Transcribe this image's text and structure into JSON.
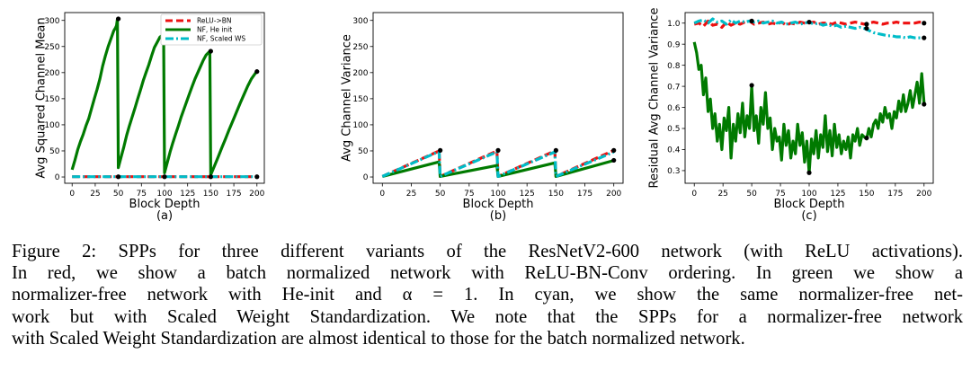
{
  "chart_data": [
    {
      "type": "line",
      "sub_label": "(a)",
      "xlabel": "Block Depth",
      "ylabel": "Avg Squared Channel Mean",
      "xlim": [
        -8,
        208
      ],
      "ylim": [
        -12,
        315
      ],
      "xticks": [
        0,
        25,
        50,
        75,
        100,
        125,
        150,
        175,
        200
      ],
      "yticks": [
        0,
        50,
        100,
        150,
        200,
        250,
        300
      ],
      "legend": {
        "position": "top-right",
        "entries": [
          {
            "name": "ReLU->BN",
            "color": "#ee1111",
            "dash": "8,4"
          },
          {
            "name": "NF, He init",
            "color": "#007a00",
            "dash": ""
          },
          {
            "name": "NF, Scaled WS",
            "color": "#00bcc8",
            "dash": "9,3,2,3"
          }
        ]
      },
      "series": [
        {
          "name": "ReLU->BN",
          "color": "#ee1111",
          "dash": "8,4",
          "x": [
            0,
            49,
            50,
            99,
            100,
            149,
            150,
            199,
            200
          ],
          "y": [
            0.5,
            0.5,
            0.5,
            0.5,
            0.5,
            0.5,
            0.5,
            0.5,
            0.5
          ]
        },
        {
          "name": "NF, He init",
          "color": "#007a00",
          "dash": "",
          "x": [
            0,
            3,
            6,
            9,
            12,
            15,
            18,
            21,
            24,
            27,
            30,
            33,
            36,
            39,
            42,
            45,
            47,
            48,
            49,
            50,
            53,
            56,
            59,
            62,
            65,
            68,
            71,
            74,
            77,
            80,
            83,
            86,
            89,
            92,
            95,
            98,
            99,
            100,
            103,
            106,
            109,
            112,
            115,
            118,
            121,
            124,
            127,
            130,
            133,
            136,
            139,
            142,
            145,
            148,
            149,
            150,
            154,
            158,
            162,
            166,
            170,
            174,
            178,
            182,
            186,
            190,
            194,
            198,
            200
          ],
          "y": [
            14,
            32,
            52,
            68,
            82,
            98,
            112,
            131,
            150,
            168,
            188,
            212,
            232,
            250,
            265,
            280,
            286,
            290,
            303,
            18,
            38,
            58,
            80,
            98,
            115,
            132,
            150,
            167,
            185,
            200,
            215,
            232,
            248,
            258,
            268,
            272,
            270,
            8,
            28,
            48,
            66,
            82,
            98,
            115,
            130,
            145,
            160,
            174,
            188,
            200,
            212,
            224,
            234,
            239,
            241,
            4,
            21,
            38,
            56,
            73,
            91,
            108,
            125,
            142,
            158,
            174,
            188,
            198,
            202
          ]
        },
        {
          "name": "NF, Scaled WS",
          "color": "#00bcc8",
          "dash": "9,3,2,3",
          "x": [
            0,
            49,
            50,
            99,
            100,
            149,
            150,
            199,
            200
          ],
          "y": [
            0.5,
            0.5,
            0.5,
            0.5,
            0.5,
            0.5,
            0.5,
            0.5,
            0.5
          ]
        }
      ],
      "markers": [
        [
          50,
          303
        ],
        [
          100,
          270
        ],
        [
          150,
          241
        ],
        [
          200,
          202
        ],
        [
          50,
          0.5
        ],
        [
          100,
          0.5
        ],
        [
          150,
          0.5
        ],
        [
          200,
          0.5
        ]
      ]
    },
    {
      "type": "line",
      "sub_label": "(b)",
      "xlabel": "Block Depth",
      "ylabel": "Avg Channel Variance",
      "xlim": [
        -8,
        208
      ],
      "ylim": [
        -12,
        315
      ],
      "xticks": [
        0,
        25,
        50,
        75,
        100,
        125,
        150,
        175,
        200
      ],
      "yticks": [
        0,
        50,
        100,
        150,
        200,
        250,
        300
      ],
      "series": [
        {
          "name": "ReLU->BN",
          "color": "#ee1111",
          "dash": "8,4",
          "x": [
            0,
            49,
            50,
            99,
            100,
            149,
            150,
            199,
            200
          ],
          "y": [
            1,
            50,
            1,
            50,
            1,
            50,
            1,
            50,
            51
          ]
        },
        {
          "name": "NF, He init",
          "color": "#007a00",
          "dash": "",
          "x": [
            0,
            49,
            50,
            99,
            100,
            149,
            150,
            199,
            200
          ],
          "y": [
            1,
            29,
            1,
            22,
            1,
            27,
            1,
            31,
            32
          ]
        },
        {
          "name": "NF, Scaled WS",
          "color": "#00bcc8",
          "dash": "9,3,2,3",
          "x": [
            0,
            49,
            50,
            99,
            100,
            149,
            150,
            199,
            200
          ],
          "y": [
            1,
            49,
            1,
            48,
            1,
            48,
            1,
            47,
            48
          ]
        }
      ],
      "markers": [
        [
          50,
          51
        ],
        [
          100,
          51
        ],
        [
          150,
          51
        ],
        [
          200,
          51
        ],
        [
          200,
          32
        ]
      ]
    },
    {
      "type": "line",
      "sub_label": "(c)",
      "xlabel": "Block Depth",
      "ylabel": "Residual Avg Channel Variance",
      "xlim": [
        -8,
        208
      ],
      "ylim": [
        0.24,
        1.05
      ],
      "xticks": [
        0,
        25,
        50,
        75,
        100,
        125,
        150,
        175,
        200
      ],
      "yticks": [
        0.3,
        0.4,
        0.5,
        0.6,
        0.7,
        0.8,
        0.9,
        1.0
      ],
      "yticklabels": [
        "0.3",
        "0.4",
        "0.5",
        "0.6",
        "0.7",
        "0.8",
        "0.9",
        "1.0"
      ],
      "series": [
        {
          "name": "ReLU->BN",
          "color": "#ee1111",
          "dash": "8,4",
          "x": [
            0,
            4,
            8,
            12,
            16,
            20,
            24,
            28,
            32,
            36,
            40,
            44,
            48,
            52,
            56,
            60,
            64,
            68,
            72,
            76,
            80,
            84,
            88,
            92,
            96,
            100,
            104,
            108,
            112,
            116,
            120,
            124,
            128,
            132,
            136,
            140,
            144,
            148,
            152,
            156,
            160,
            164,
            168,
            172,
            176,
            180,
            184,
            188,
            192,
            196,
            200
          ],
          "y": [
            0.995,
            1.0,
            0.985,
            1.01,
            0.99,
            0.995,
            0.98,
            1.005,
            0.99,
            1.0,
            0.995,
            1.005,
            1.01,
            0.995,
            1.0,
            1.005,
            0.995,
            1.0,
            0.995,
            1.005,
            0.99,
            1.0,
            0.995,
            1.005,
            1.0,
            1.0,
            1.005,
            0.995,
            1.0,
            1.0,
            0.995,
            1.005,
            1.0,
            0.995,
            1.0,
            1.005,
            1.0,
            0.995,
            1.0,
            1.005,
            1.0,
            0.995,
            1.0,
            1.0,
            1.005,
            1.0,
            1.0,
            1.0,
            1.0,
            1.005,
            1.0
          ]
        },
        {
          "name": "NF, Scaled WS",
          "color": "#00bcc8",
          "dash": "9,3,2,3",
          "x": [
            0,
            4,
            8,
            12,
            16,
            20,
            24,
            28,
            32,
            36,
            40,
            44,
            48,
            52,
            56,
            60,
            64,
            68,
            72,
            76,
            80,
            84,
            88,
            92,
            96,
            100,
            104,
            108,
            112,
            116,
            120,
            124,
            128,
            132,
            136,
            140,
            144,
            148,
            152,
            156,
            160,
            164,
            168,
            172,
            176,
            180,
            184,
            188,
            192,
            196,
            200
          ],
          "y": [
            1.0,
            1.01,
            1.015,
            1.0,
            1.02,
            1.005,
            1.01,
            0.995,
            1.015,
            1.0,
            1.01,
            1.005,
            1.01,
            1.005,
            1.01,
            1.0,
            1.005,
            1.01,
            1.0,
            1.005,
            0.995,
            1.0,
            1.005,
            0.995,
            1.0,
            1.005,
            0.995,
            1.0,
            0.99,
            0.995,
            0.985,
            0.99,
            0.98,
            0.985,
            0.98,
            0.975,
            0.98,
            0.975,
            0.965,
            0.955,
            0.95,
            0.945,
            0.94,
            0.94,
            0.935,
            0.935,
            0.93,
            0.935,
            0.93,
            0.93,
            0.93
          ]
        },
        {
          "name": "NF, He init",
          "color": "#007a00",
          "dash": "",
          "x": [
            0,
            2,
            4,
            6,
            8,
            10,
            12,
            14,
            16,
            18,
            20,
            22,
            24,
            26,
            28,
            30,
            32,
            34,
            36,
            38,
            40,
            42,
            44,
            46,
            48,
            50,
            52,
            54,
            56,
            58,
            60,
            62,
            64,
            66,
            68,
            70,
            72,
            74,
            76,
            78,
            80,
            82,
            84,
            86,
            88,
            90,
            92,
            94,
            96,
            98,
            100,
            102,
            104,
            106,
            108,
            110,
            112,
            114,
            116,
            118,
            120,
            122,
            124,
            126,
            128,
            130,
            132,
            134,
            136,
            138,
            140,
            142,
            144,
            146,
            148,
            150,
            152,
            154,
            156,
            158,
            160,
            162,
            164,
            166,
            168,
            170,
            172,
            174,
            176,
            178,
            180,
            182,
            184,
            186,
            188,
            190,
            192,
            194,
            196,
            198,
            200
          ],
          "y": [
            0.91,
            0.86,
            0.78,
            0.8,
            0.66,
            0.74,
            0.58,
            0.64,
            0.5,
            0.57,
            0.44,
            0.52,
            0.4,
            0.55,
            0.49,
            0.6,
            0.36,
            0.52,
            0.44,
            0.57,
            0.48,
            0.62,
            0.46,
            0.56,
            0.5,
            0.7,
            0.49,
            0.56,
            0.43,
            0.6,
            0.52,
            0.67,
            0.5,
            0.55,
            0.4,
            0.5,
            0.44,
            0.46,
            0.35,
            0.52,
            0.42,
            0.49,
            0.36,
            0.44,
            0.38,
            0.52,
            0.42,
            0.48,
            0.34,
            0.44,
            0.29,
            0.45,
            0.38,
            0.49,
            0.36,
            0.47,
            0.41,
            0.56,
            0.39,
            0.49,
            0.37,
            0.52,
            0.41,
            0.47,
            0.38,
            0.44,
            0.4,
            0.46,
            0.36,
            0.47,
            0.44,
            0.5,
            0.42,
            0.47,
            0.46,
            0.45,
            0.5,
            0.46,
            0.52,
            0.54,
            0.5,
            0.57,
            0.53,
            0.6,
            0.55,
            0.57,
            0.5,
            0.58,
            0.55,
            0.63,
            0.58,
            0.66,
            0.58,
            0.62,
            0.68,
            0.6,
            0.66,
            0.72,
            0.62,
            0.76,
            0.62
          ]
        }
      ],
      "markers": [
        [
          50,
          1.01
        ],
        [
          100,
          1.005
        ],
        [
          150,
          0.995
        ],
        [
          200,
          1.0
        ],
        [
          150,
          0.975
        ],
        [
          200,
          0.93
        ],
        [
          50,
          0.705
        ],
        [
          100,
          0.29
        ],
        [
          150,
          0.455
        ],
        [
          200,
          0.615
        ]
      ]
    }
  ],
  "caption": {
    "lines": [
      "Figure 2: SPPs for three different variants of the ResNetV2-600 network (with ReLU activations).",
      "In red, we show a batch normalized network with ReLU-BN-Conv ordering. In green we show a",
      "normalizer-free network with He-init and α = 1. In cyan, we show the same normalizer-free net-",
      "work but with Scaled Weight Standardization. We note that the SPPs for a normalizer-free network",
      "with Scaled Weight Standardization are almost identical to those for the batch normalized network."
    ]
  }
}
